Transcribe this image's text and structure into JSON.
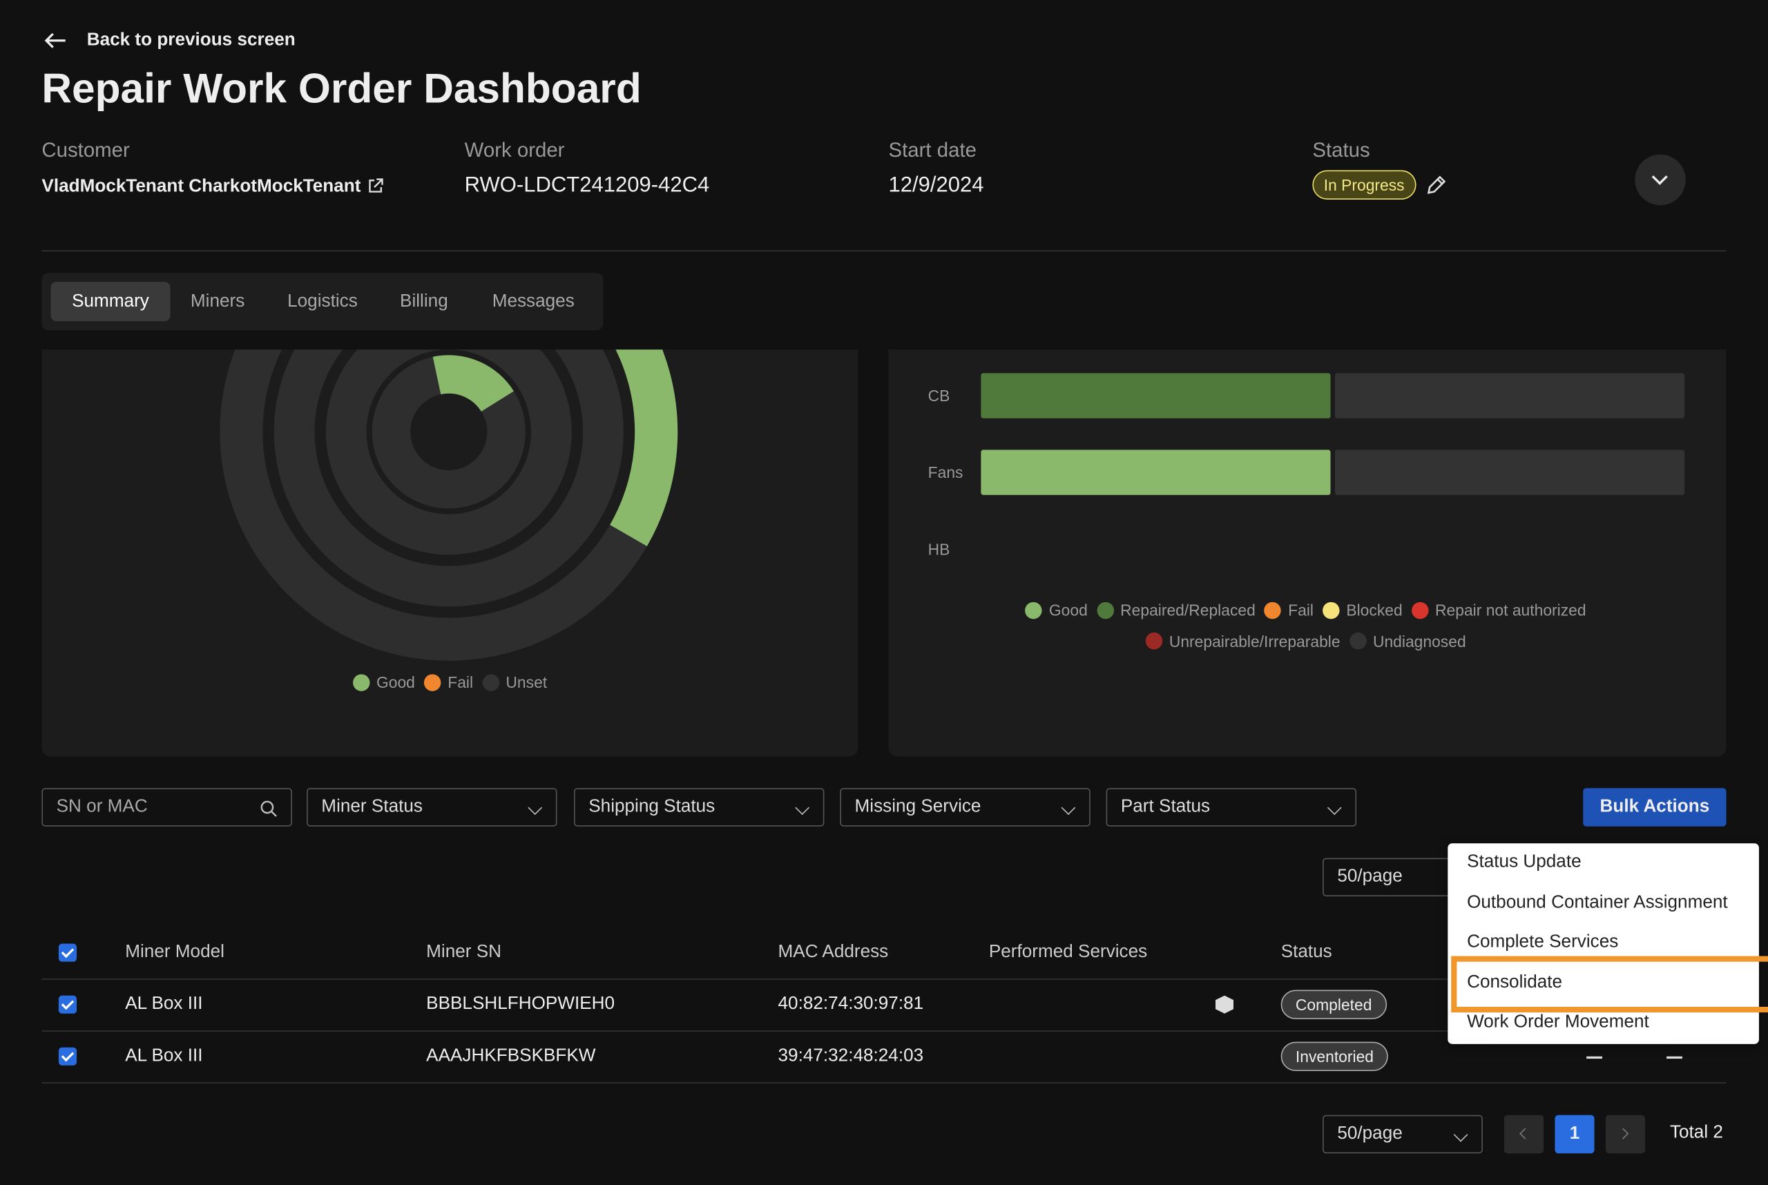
{
  "back": "Back to previous screen",
  "title": "Repair Work Order Dashboard",
  "fields": [
    {
      "label": "Customer",
      "value": "VladMockTenant CharkotMockTenant"
    },
    {
      "label": "Work order",
      "value": "RWO-LDCT241209-42C4"
    },
    {
      "label": "Start date",
      "value": "12/9/2024"
    },
    {
      "label": "Status",
      "value": "In Progress"
    }
  ],
  "tabs": [
    "Summary",
    "Miners",
    "Logistics",
    "Billing",
    "Messages"
  ],
  "donut_legend": [
    {
      "name": "Good",
      "color": "#8ab96b"
    },
    {
      "name": "Fail",
      "color": "#f0872f"
    },
    {
      "name": "Unset",
      "color": "#333333"
    }
  ],
  "chart_data": {
    "type": "bar",
    "categories": [
      "CB",
      "Fans",
      "HB"
    ],
    "series": [
      {
        "name": "Good",
        "color": "#8ab96b",
        "values": [
          0,
          1,
          0
        ]
      },
      {
        "name": "Repaired/Replaced",
        "color": "#4f7a3c",
        "values": [
          1,
          0,
          0
        ]
      },
      {
        "name": "Fail",
        "color": "#f0872f",
        "values": [
          0,
          0,
          0
        ]
      },
      {
        "name": "Blocked",
        "color": "#f4e27a",
        "values": [
          0,
          0,
          0
        ]
      },
      {
        "name": "Repair not authorized",
        "color": "#d8352c",
        "values": [
          0,
          0,
          0
        ]
      },
      {
        "name": "Unrepairable/Irreparable",
        "color": "#9b2a24",
        "values": [
          0,
          0,
          0
        ]
      },
      {
        "name": "Undiagnosed",
        "color": "#333333",
        "values": [
          1,
          1,
          0
        ]
      }
    ]
  },
  "filters": {
    "search": "SN or MAC",
    "selects": [
      "Miner Status",
      "Shipping Status",
      "Missing Service",
      "Part Status"
    ]
  },
  "bulk_actions": {
    "button": "Bulk Actions",
    "items": [
      "Status Update",
      "Outbound Container Assignment",
      "Complete Services",
      "Consolidate",
      "Work Order Movement"
    ]
  },
  "page_size": "50/page",
  "table": {
    "columns": [
      "Miner Model",
      "Miner SN",
      "MAC Address",
      "Performed Services",
      "Status"
    ],
    "rows": [
      {
        "model": "AL Box III",
        "sn": "BBBLSHLFHOPWIEH0",
        "mac": "40:82:74:30:97:81",
        "status": "Completed"
      },
      {
        "model": "AL Box III",
        "sn": "AAAJHKFBSKBFKW",
        "mac": "39:47:32:48:24:03",
        "status": "Inventoried"
      }
    ]
  },
  "pagination": {
    "page": "1",
    "total": "Total 2"
  }
}
